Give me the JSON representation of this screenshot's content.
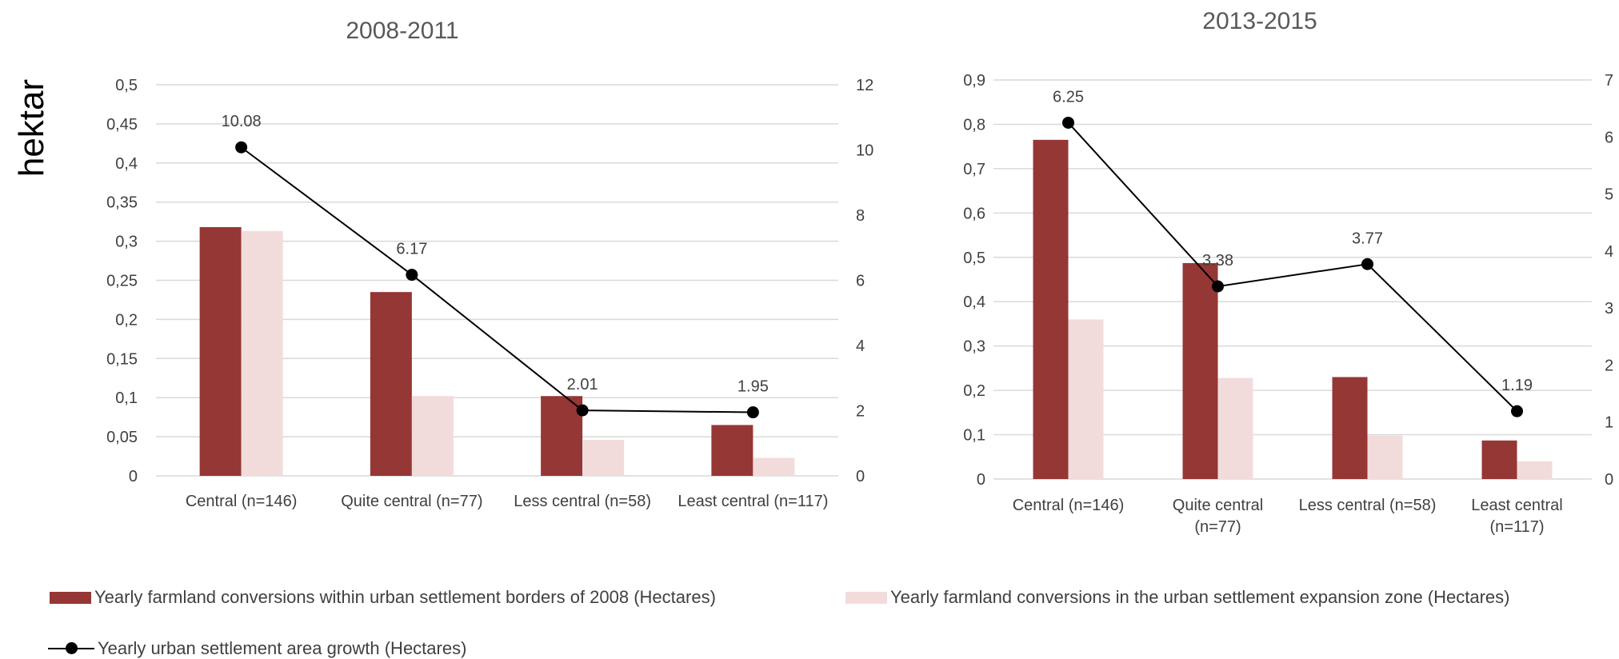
{
  "ylabel": "hektar",
  "colors": {
    "conv_within": "#953735",
    "conv_expansion": "#f2dcdb",
    "growth": "#000000",
    "grid": "#d9d9d9",
    "text": "#404040"
  },
  "legend": {
    "conv_within": "Yearly farmland conversions  within urban settlement borders of 2008 (Hectares)",
    "conv_expansion": "Yearly farmland conversions in the urban settlement expansion zone (Hectares)",
    "growth": "Yearly urban settlement area growth (Hectares)"
  },
  "chart_data": [
    {
      "type": "bar",
      "title": "2008-2011",
      "categories": [
        [
          "Central (n=146)"
        ],
        [
          "Quite central (n=77)"
        ],
        [
          "Less central (n=58)"
        ],
        [
          "Least central (n=117)"
        ]
      ],
      "y_left": {
        "min": 0,
        "max": 0.5,
        "step": 0.05,
        "ticks": [
          "0",
          "0,05",
          "0,1",
          "0,15",
          "0,2",
          "0,25",
          "0,3",
          "0,35",
          "0,4",
          "0,45",
          "0,5"
        ]
      },
      "y_right": {
        "min": 0,
        "max": 12,
        "step": 2,
        "ticks": [
          "0",
          "2",
          "4",
          "6",
          "8",
          "10",
          "12"
        ]
      },
      "series": [
        {
          "name": "Yearly farmland conversions  within urban settlement borders of 2008 (Hectares)",
          "type": "bar",
          "axis": "left",
          "values": [
            0.318,
            0.235,
            0.102,
            0.065
          ]
        },
        {
          "name": "Yearly farmland conversions in the urban settlement expansion zone (Hectares)",
          "type": "bar",
          "axis": "left",
          "values": [
            0.313,
            0.102,
            0.046,
            0.023
          ]
        },
        {
          "name": "Yearly urban settlement area growth (Hectares)",
          "type": "line",
          "axis": "right",
          "values": [
            10.08,
            6.17,
            2.01,
            1.95
          ],
          "labels": [
            "10.08",
            "6.17",
            "2.01",
            "1.95"
          ]
        }
      ],
      "grid": true
    },
    {
      "type": "bar",
      "title": "2013-2015",
      "categories": [
        [
          "Central (n=146)"
        ],
        [
          "Quite central",
          "(n=77)"
        ],
        [
          "Less central (n=58)"
        ],
        [
          "Least central",
          "(n=117)"
        ]
      ],
      "y_left": {
        "min": 0,
        "max": 0.9,
        "step": 0.1,
        "ticks": [
          "0",
          "0,1",
          "0,2",
          "0,3",
          "0,4",
          "0,5",
          "0,6",
          "0,7",
          "0,8",
          "0,9"
        ]
      },
      "y_right": {
        "min": 0,
        "max": 7,
        "step": 1,
        "ticks": [
          "0",
          "1",
          "2",
          "3",
          "4",
          "5",
          "6",
          "7"
        ]
      },
      "series": [
        {
          "name": "Yearly farmland conversions  within urban settlement borders of 2008 (Hectares)",
          "type": "bar",
          "axis": "left",
          "values": [
            0.765,
            0.487,
            0.23,
            0.087
          ]
        },
        {
          "name": "Yearly farmland conversions in the urban settlement expansion zone (Hectares)",
          "type": "bar",
          "axis": "left",
          "values": [
            0.36,
            0.228,
            0.098,
            0.04
          ]
        },
        {
          "name": "Yearly urban settlement area growth (Hectares)",
          "type": "line",
          "axis": "right",
          "values": [
            6.25,
            3.38,
            3.77,
            1.19
          ],
          "labels": [
            "6.25",
            "3.38",
            "3.77",
            "1.19"
          ]
        }
      ],
      "grid": true
    }
  ]
}
